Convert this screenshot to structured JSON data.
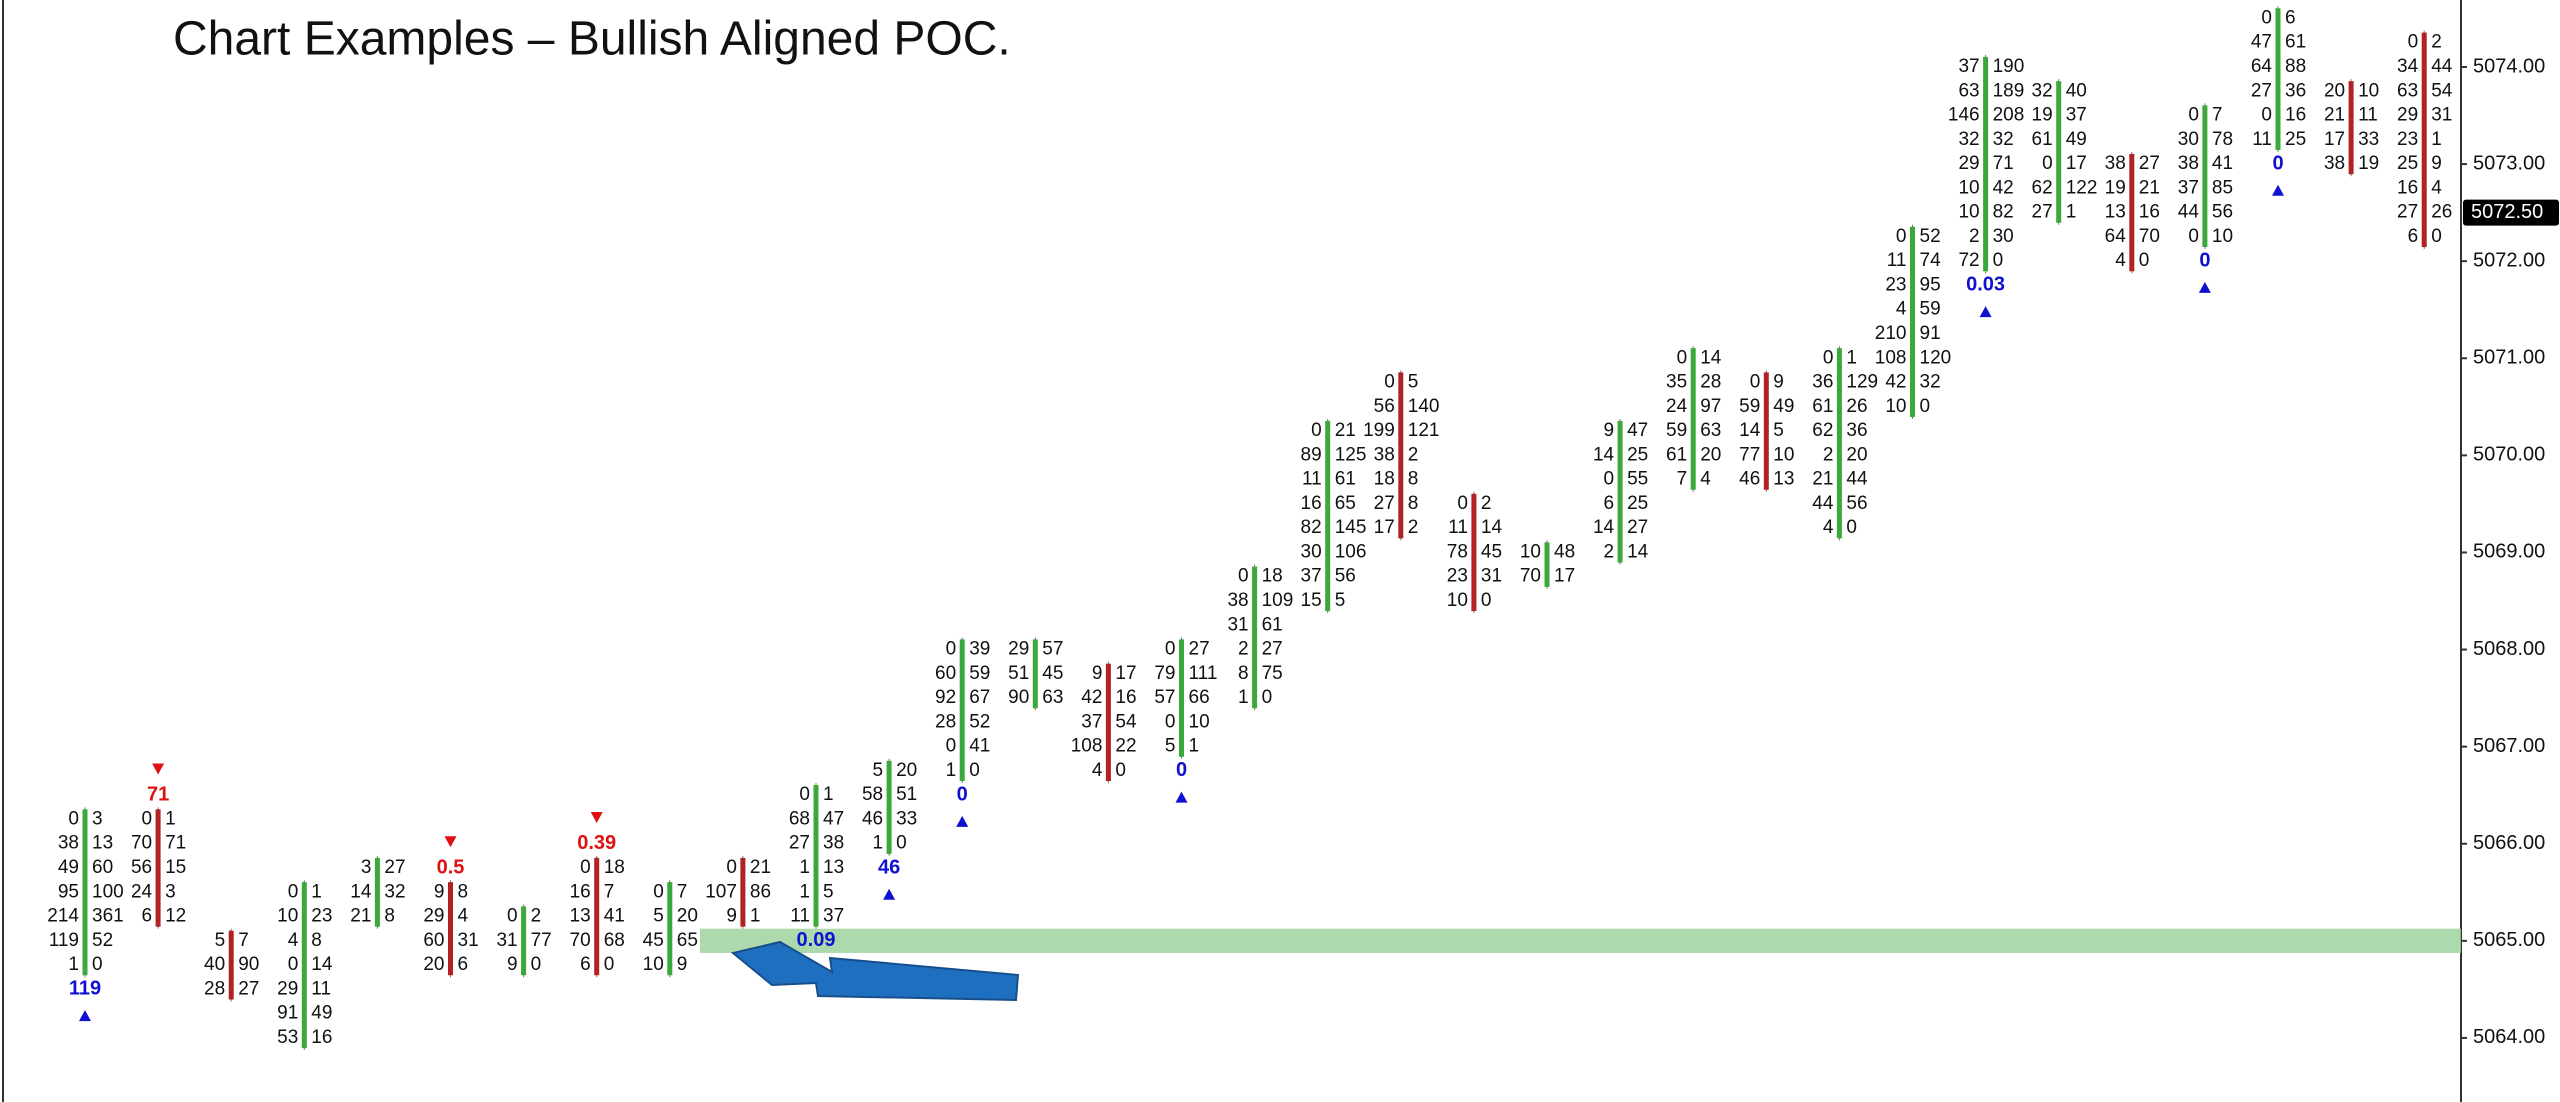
{
  "chart_data": {
    "type": "footprint",
    "title": "Chart Examples – Bullish Aligned POC.",
    "ylim": [
      5063.34,
      5074.69
    ],
    "yticks": [
      {
        "value": 5064,
        "label": "5064.00"
      },
      {
        "value": 5065,
        "label": "5065.00"
      },
      {
        "value": 5066,
        "label": "5066.00"
      },
      {
        "value": 5067,
        "label": "5067.00"
      },
      {
        "value": 5068,
        "label": "5068.00"
      },
      {
        "value": 5069,
        "label": "5069.00"
      },
      {
        "value": 5070,
        "label": "5070.00"
      },
      {
        "value": 5071,
        "label": "5071.00"
      },
      {
        "value": 5072,
        "label": "5072.00"
      },
      {
        "value": 5073,
        "label": "5073.00"
      },
      {
        "value": 5074,
        "label": "5074.00"
      }
    ],
    "last": {
      "value": 5072.5,
      "label": "5072.50"
    },
    "zone": 5065,
    "columns": [
      {
        "top": 5066.25,
        "color": "#3aa83a",
        "rows": [
          [
            0,
            3
          ],
          [
            38,
            13
          ],
          [
            49,
            60
          ],
          [
            95,
            100
          ],
          [
            214,
            361
          ],
          [
            119,
            52
          ],
          [
            1,
            0
          ]
        ],
        "delta": 119
      },
      {
        "top": 5066.25,
        "color": "#b22222",
        "rows": [
          [
            0,
            1
          ],
          [
            70,
            71
          ],
          [
            56,
            15
          ],
          [
            24,
            3
          ],
          [
            6,
            12
          ]
        ],
        "delta": 71
      },
      {
        "top": 5065.0,
        "color": "#b22222",
        "rows": [
          [
            5,
            7
          ],
          [
            40,
            90
          ],
          [
            28,
            27
          ]
        ]
      },
      {
        "top": 5065.5,
        "color": "#3aa83a",
        "rows": [
          [
            0,
            1
          ],
          [
            10,
            23
          ],
          [
            4,
            8
          ],
          [
            0,
            14
          ],
          [
            29,
            11
          ],
          [
            91,
            49
          ],
          [
            53,
            16
          ]
        ]
      },
      {
        "top": 5065.75,
        "color": "#3aa83a",
        "rows": [
          [
            3,
            27
          ],
          [
            14,
            32
          ],
          [
            21,
            8
          ]
        ]
      },
      {
        "top": 5065.5,
        "color": "#b22222",
        "rows": [
          [
            9,
            8
          ],
          [
            29,
            4
          ],
          [
            60,
            31
          ],
          [
            20,
            6
          ]
        ],
        "delta": 0.5
      },
      {
        "top": 5065.25,
        "color": "#3aa83a",
        "rows": [
          [
            0,
            2
          ],
          [
            31,
            77
          ],
          [
            9,
            0
          ]
        ]
      },
      {
        "top": 5065.75,
        "color": "#b22222",
        "rows": [
          [
            0,
            18
          ],
          [
            16,
            7
          ],
          [
            13,
            41
          ],
          [
            70,
            68
          ],
          [
            6,
            0
          ]
        ],
        "delta": 0.39
      },
      {
        "top": 5065.5,
        "color": "#3aa83a",
        "rows": [
          [
            0,
            7
          ],
          [
            5,
            20
          ],
          [
            45,
            65
          ],
          [
            10,
            9
          ]
        ]
      },
      {
        "top": 5065.75,
        "color": "#b22222",
        "rows": [
          [
            0,
            21
          ],
          [
            107,
            86
          ],
          [
            9,
            1
          ]
        ]
      },
      {
        "top": 5066.5,
        "color": "#3aa83a",
        "rows": [
          [
            0,
            1
          ],
          [
            68,
            47
          ],
          [
            27,
            38
          ],
          [
            1,
            13
          ],
          [
            1,
            5
          ],
          [
            11,
            37
          ]
        ],
        "delta": 0.09
      },
      {
        "top": 5066.75,
        "color": "#3aa83a",
        "rows": [
          [
            5,
            20
          ],
          [
            58,
            51
          ],
          [
            46,
            33
          ],
          [
            1,
            0
          ]
        ],
        "delta": 46
      },
      {
        "top": 5068.0,
        "color": "#3aa83a",
        "rows": [
          [
            0,
            39
          ],
          [
            60,
            59
          ],
          [
            92,
            67
          ],
          [
            28,
            52
          ],
          [
            0,
            41
          ],
          [
            1,
            0
          ]
        ],
        "delta": 0
      },
      {
        "top": 5068.0,
        "color": "#3aa83a",
        "rows": [
          [
            29,
            57
          ],
          [
            51,
            45
          ],
          [
            90,
            63
          ]
        ]
      },
      {
        "top": 5067.75,
        "color": "#b22222",
        "rows": [
          [
            9,
            17
          ],
          [
            42,
            16
          ],
          [
            37,
            54
          ],
          [
            108,
            22
          ],
          [
            4,
            0
          ]
        ]
      },
      {
        "top": 5068.0,
        "color": "#3aa83a",
        "rows": [
          [
            0,
            27
          ],
          [
            79,
            111
          ],
          [
            57,
            66
          ],
          [
            0,
            10
          ],
          [
            5,
            1
          ]
        ],
        "delta": 0
      },
      {
        "top": 5068.75,
        "color": "#3aa83a",
        "rows": [
          [
            0,
            18
          ],
          [
            38,
            109
          ],
          [
            31,
            61
          ],
          [
            2,
            27
          ],
          [
            8,
            75
          ],
          [
            1,
            0
          ]
        ]
      },
      {
        "top": 5070.25,
        "color": "#3aa83a",
        "rows": [
          [
            0,
            21
          ],
          [
            89,
            125
          ],
          [
            11,
            61
          ],
          [
            16,
            65
          ],
          [
            82,
            145
          ],
          [
            30,
            106
          ],
          [
            37,
            56
          ],
          [
            15,
            5
          ]
        ]
      },
      {
        "top": 5070.75,
        "color": "#b22222",
        "rows": [
          [
            0,
            5
          ],
          [
            56,
            140
          ],
          [
            199,
            121
          ],
          [
            38,
            2
          ],
          [
            18,
            8
          ],
          [
            27,
            8
          ],
          [
            17,
            2
          ]
        ]
      },
      {
        "top": 5069.5,
        "color": "#b22222",
        "rows": [
          [
            0,
            2
          ],
          [
            11,
            14
          ],
          [
            78,
            45
          ],
          [
            23,
            31
          ],
          [
            10,
            0
          ]
        ]
      },
      {
        "top": 5069.0,
        "color": "#3aa83a",
        "rows": [
          [
            10,
            48
          ],
          [
            70,
            17
          ]
        ]
      },
      {
        "top": 5070.25,
        "color": "#3aa83a",
        "rows": [
          [
            9,
            47
          ],
          [
            14,
            25
          ],
          [
            0,
            55
          ],
          [
            6,
            25
          ],
          [
            14,
            27
          ],
          [
            2,
            14
          ]
        ]
      },
      {
        "top": 5071.0,
        "color": "#3aa83a",
        "rows": [
          [
            0,
            14
          ],
          [
            35,
            28
          ],
          [
            24,
            97
          ],
          [
            59,
            63
          ],
          [
            61,
            20
          ],
          [
            7,
            4
          ]
        ]
      },
      {
        "top": 5070.75,
        "color": "#b22222",
        "rows": [
          [
            0,
            9
          ],
          [
            59,
            49
          ],
          [
            14,
            5
          ],
          [
            77,
            10
          ],
          [
            46,
            13
          ]
        ]
      },
      {
        "top": 5071.0,
        "color": "#3aa83a",
        "rows": [
          [
            0,
            1
          ],
          [
            36,
            129
          ],
          [
            61,
            26
          ],
          [
            62,
            36
          ],
          [
            2,
            20
          ],
          [
            21,
            44
          ],
          [
            44,
            56
          ],
          [
            4,
            0
          ]
        ]
      },
      {
        "top": 5072.25,
        "color": "#3aa83a",
        "rows": [
          [
            0,
            52
          ],
          [
            11,
            74
          ],
          [
            23,
            95
          ],
          [
            4,
            59
          ],
          [
            210,
            91
          ],
          [
            108,
            120
          ],
          [
            42,
            32
          ],
          [
            10,
            0
          ]
        ]
      },
      {
        "top": 5074.0,
        "color": "#3aa83a",
        "rows": [
          [
            37,
            190
          ],
          [
            63,
            189
          ],
          [
            146,
            208
          ],
          [
            32,
            32
          ],
          [
            29,
            71
          ],
          [
            10,
            42
          ],
          [
            10,
            82
          ],
          [
            2,
            30
          ],
          [
            72,
            0
          ]
        ],
        "delta": 0.03
      },
      {
        "top": 5073.75,
        "color": "#3aa83a",
        "rows": [
          [
            32,
            40
          ],
          [
            19,
            37
          ],
          [
            61,
            49
          ],
          [
            0,
            17
          ],
          [
            62,
            122
          ],
          [
            27,
            1
          ]
        ]
      },
      {
        "top": 5073.0,
        "color": "#b22222",
        "rows": [
          [
            38,
            27
          ],
          [
            19,
            21
          ],
          [
            13,
            16
          ],
          [
            64,
            70
          ],
          [
            4,
            0
          ]
        ]
      },
      {
        "top": 5073.5,
        "color": "#3aa83a",
        "rows": [
          [
            0,
            7
          ],
          [
            30,
            78
          ],
          [
            38,
            41
          ],
          [
            37,
            85
          ],
          [
            44,
            56
          ],
          [
            0,
            10
          ]
        ],
        "delta": 0
      },
      {
        "top": 5074.5,
        "color": "#3aa83a",
        "rows": [
          [
            0,
            6
          ],
          [
            47,
            61
          ],
          [
            64,
            88
          ],
          [
            27,
            36
          ],
          [
            0,
            16
          ],
          [
            11,
            25
          ]
        ],
        "delta": 0
      },
      {
        "top": 5073.75,
        "color": "#b22222",
        "rows": [
          [
            20,
            10
          ],
          [
            21,
            11
          ],
          [
            17,
            33
          ],
          [
            38,
            19
          ]
        ]
      },
      {
        "top": 5074.25,
        "color": "#b22222",
        "rows": [
          [
            0,
            2
          ],
          [
            34,
            44
          ],
          [
            63,
            54
          ],
          [
            29,
            31
          ],
          [
            23,
            1
          ],
          [
            25,
            9
          ],
          [
            16,
            4
          ],
          [
            27,
            26
          ],
          [
            6,
            0
          ]
        ]
      }
    ]
  }
}
